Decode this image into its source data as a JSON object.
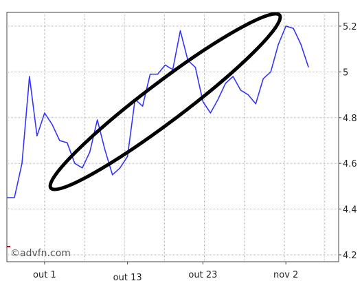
{
  "chart_data": {
    "type": "line",
    "watermark": "©advfn.com",
    "x_tick_labels": [
      "out 1",
      "out 13",
      "out 23",
      "nov 2"
    ],
    "y_tick_labels": [
      "5.2",
      "5",
      "4.8",
      "4.6",
      "4.4",
      "4.2"
    ],
    "ylim": [
      4.17,
      5.26
    ],
    "xlim": [
      0,
      44
    ],
    "y_axis_side": "right",
    "grid": true,
    "colors": {
      "line": "#3333ff",
      "grid": "#bbbbbb",
      "annotation": "#000000",
      "watermark_mark": "#cc0000"
    },
    "series": [
      {
        "values": [
          [
            0,
            4.45
          ],
          [
            1,
            4.45
          ],
          [
            2,
            4.6
          ],
          [
            3,
            4.98
          ],
          [
            4,
            4.72
          ],
          [
            5,
            4.82
          ],
          [
            6,
            4.77
          ],
          [
            7,
            4.7
          ],
          [
            8,
            4.69
          ],
          [
            9,
            4.6
          ],
          [
            10,
            4.58
          ],
          [
            11,
            4.65
          ],
          [
            12,
            4.79
          ],
          [
            13,
            4.66
          ],
          [
            14,
            4.55
          ],
          [
            15,
            4.58
          ],
          [
            16,
            4.63
          ],
          [
            17,
            4.88
          ],
          [
            18,
            4.85
          ],
          [
            19,
            4.99
          ],
          [
            20,
            4.99
          ],
          [
            21,
            5.03
          ],
          [
            22,
            5.01
          ],
          [
            23,
            5.18
          ],
          [
            24,
            5.05
          ],
          [
            25,
            5.02
          ],
          [
            26,
            4.87
          ],
          [
            27,
            4.82
          ],
          [
            28,
            4.88
          ],
          [
            29,
            4.95
          ],
          [
            30,
            4.98
          ],
          [
            31,
            4.92
          ],
          [
            32,
            4.9
          ],
          [
            33,
            4.86
          ],
          [
            34,
            4.97
          ],
          [
            35,
            5.0
          ],
          [
            36,
            5.12
          ],
          [
            37,
            5.2
          ],
          [
            38,
            5.19
          ],
          [
            39,
            5.12
          ],
          [
            40,
            5.02
          ]
        ]
      }
    ],
    "annotation": {
      "type": "ellipse",
      "center": [
        21,
        4.87
      ],
      "rx_days": 20,
      "ry_value": 0.45,
      "angle_deg": -37
    }
  }
}
